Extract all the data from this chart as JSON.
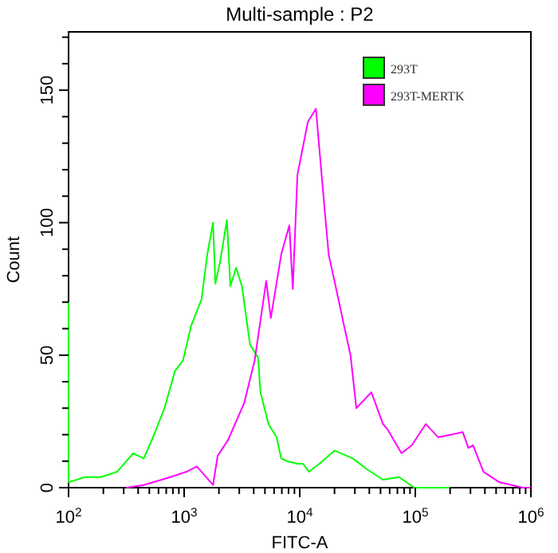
{
  "chart_data": {
    "type": "line",
    "title": "Multi-sample : P2",
    "xlabel": "FITC-A",
    "ylabel": "Count",
    "log": "x",
    "legend": "top right",
    "grid": false,
    "marker": "none",
    "line_style": "solid",
    "xlim": [
      100,
      1000000
    ],
    "ylim": [
      0,
      172
    ],
    "xticks": [
      {
        "value": 100,
        "label": "10$^{2}$"
      },
      {
        "value": 200,
        "label": null
      },
      {
        "value": 300,
        "label": null
      },
      {
        "value": 400,
        "label": null
      },
      {
        "value": 500,
        "label": null
      },
      {
        "value": 600,
        "label": null
      },
      {
        "value": 700,
        "label": null
      },
      {
        "value": 800,
        "label": null
      },
      {
        "value": 900,
        "label": null
      },
      {
        "value": 1000,
        "label": "10$^{3}$"
      },
      {
        "value": 2000,
        "label": null
      },
      {
        "value": 3000,
        "label": null
      },
      {
        "value": 4000,
        "label": null
      },
      {
        "value": 5000,
        "label": null
      },
      {
        "value": 6000,
        "label": null
      },
      {
        "value": 7000,
        "label": null
      },
      {
        "value": 8000,
        "label": null
      },
      {
        "value": 9000,
        "label": null
      },
      {
        "value": 10000,
        "label": "10$^{4}$"
      },
      {
        "value": 20000,
        "label": null
      },
      {
        "value": 30000,
        "label": null
      },
      {
        "value": 40000,
        "label": null
      },
      {
        "value": 50000,
        "label": null
      },
      {
        "value": 60000,
        "label": null
      },
      {
        "value": 70000,
        "label": null
      },
      {
        "value": 80000,
        "label": null
      },
      {
        "value": 90000,
        "label": null
      },
      {
        "value": 100000,
        "label": "10$^{5}$"
      },
      {
        "value": 200000,
        "label": null
      },
      {
        "value": 300000,
        "label": null
      },
      {
        "value": 400000,
        "label": null
      },
      {
        "value": 500000,
        "label": null
      },
      {
        "value": 600000,
        "label": null
      },
      {
        "value": 700000,
        "label": null
      },
      {
        "value": 800000,
        "label": null
      },
      {
        "value": 900000,
        "label": null
      },
      {
        "value": 1000000,
        "label": "10$^{6}$"
      }
    ],
    "yticks": [
      0,
      {
        "value": 10,
        "label": null
      },
      {
        "value": 20,
        "label": null
      },
      {
        "value": 30,
        "label": null
      },
      {
        "value": 40,
        "label": null
      },
      50,
      {
        "value": 60,
        "label": null
      },
      {
        "value": 70,
        "label": null
      },
      {
        "value": 80,
        "label": null
      },
      {
        "value": 90,
        "label": null
      },
      100,
      {
        "value": 110,
        "label": null
      },
      {
        "value": 120,
        "label": null
      },
      {
        "value": 130,
        "label": null
      },
      {
        "value": 140,
        "label": null
      },
      150,
      {
        "value": 160,
        "label": null
      },
      {
        "value": 170,
        "label": null
      }
    ],
    "series": [
      {
        "name": "293T",
        "color": "#00ff00",
        "x": [
          100,
          100,
          138,
          191,
          263,
          363,
          447,
          550,
          676,
          832,
          977,
          1148,
          1413,
          1585,
          1778,
          1862,
          2042,
          2344,
          2512,
          2818,
          3162,
          3715,
          4365,
          4571,
          5370,
          6310,
          6918,
          7762,
          9550,
          10700,
          12000,
          14800,
          20000,
          28800,
          38000,
          52500,
          72400,
          97700,
          123000,
          150000,
          200000
        ],
        "values": [
          70,
          2,
          4,
          4,
          6,
          13,
          11,
          20,
          30,
          44,
          48,
          61,
          71,
          88,
          100,
          77,
          85,
          101,
          76,
          83,
          76,
          54,
          49,
          36,
          24,
          19,
          11,
          10,
          9,
          9,
          6,
          9,
          14,
          11,
          7,
          3,
          4,
          0,
          0,
          0,
          0
        ]
      },
      {
        "name": "293T-MERTK",
        "color": "#ff00ff",
        "x": [
          316,
          447,
          759,
          1047,
          1288,
          1778,
          1950,
          2400,
          3311,
          4074,
          5129,
          5623,
          6918,
          8128,
          8710,
          9550,
          11750,
          13800,
          16200,
          17800,
          21400,
          23400,
          27500,
          30900,
          41700,
          52500,
          57500,
          75900,
          93300,
          123000,
          158000,
          204000,
          257000,
          288000,
          316000,
          389000,
          537000,
          851000,
          1000000
        ],
        "values": [
          0,
          1,
          4,
          6,
          8,
          1,
          12,
          18,
          32,
          48,
          78,
          64,
          88,
          99,
          75,
          118,
          138,
          143,
          108,
          88,
          72,
          64,
          50,
          30,
          36,
          24,
          22,
          13,
          16,
          24,
          19,
          20,
          21,
          15,
          16,
          6,
          2,
          0,
          0
        ]
      }
    ]
  }
}
